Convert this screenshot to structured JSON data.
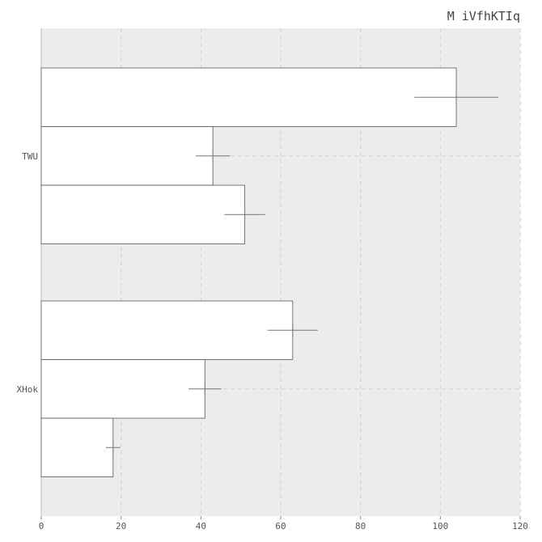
{
  "chart_data": {
    "type": "bar",
    "orientation": "horizontal",
    "title": "M iVfhKTIq",
    "xlabel": "",
    "ylabel": "",
    "categories": [
      "TWU",
      "XHok"
    ],
    "series": [
      {
        "values": [
          104,
          63
        ],
        "errors": [
          10.5,
          6.3
        ]
      },
      {
        "values": [
          43,
          41
        ],
        "errors": [
          4.3,
          4.1
        ]
      },
      {
        "values": [
          51,
          18
        ],
        "errors": [
          5.1,
          1.8
        ]
      }
    ],
    "xlim": [
      0,
      120
    ],
    "xticks": [
      0,
      20,
      40,
      60,
      80,
      100,
      120
    ],
    "xtick_labels": [
      "0",
      "20",
      "40",
      "60",
      "80",
      "100",
      "120"
    ],
    "grid": true,
    "colors": {
      "plot_background": "#ececec",
      "bar_fill": "#ffffff",
      "bar_edge": "#555555",
      "grid": "#d2d2d2",
      "error_bar": "#777777"
    }
  }
}
